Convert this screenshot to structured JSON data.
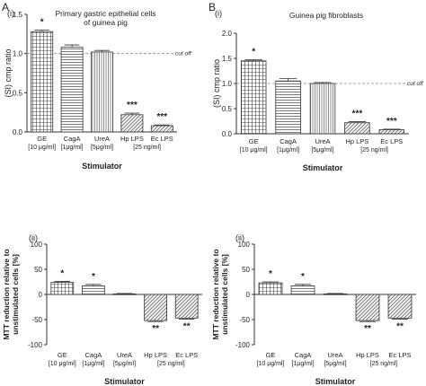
{
  "panel_letters": [
    "A",
    "B"
  ],
  "chart_data": [
    {
      "type": "bar",
      "panel": "A",
      "sub_label": "(i)",
      "title": [
        "Primary gastric epithelial cells",
        "of guinea pig"
      ],
      "xlabel": "Stimulator",
      "ylabel": "(SI) cmp ratio",
      "ylim": [
        0,
        1.5
      ],
      "yticks": [
        "0.0",
        "0.5",
        "1.0",
        "1.5"
      ],
      "categories": [
        [
          "GE",
          "[10 μg/ml]"
        ],
        [
          "CagA",
          "[1μg/ml]"
        ],
        [
          "UreA",
          "[5μg/ml]"
        ],
        [
          "Hp LPS",
          ""
        ],
        [
          "Ec LPS",
          ""
        ]
      ],
      "group_label": "[25 ng/ml]",
      "values": [
        1.28,
        1.08,
        1.02,
        0.22,
        0.08
      ],
      "errors": [
        0.02,
        0.03,
        0.02,
        0.02,
        0.01
      ],
      "significance": [
        "*",
        "",
        "",
        "***",
        "***"
      ],
      "cutoff": {
        "value": 1.0,
        "label": "cut off"
      },
      "patterns": [
        "grid",
        "hlines",
        "vlines",
        "diag",
        "diag"
      ],
      "colors": {
        "bar_fill": "#ffffff",
        "bar_stroke": "#333333",
        "cutoff": "#888888"
      }
    },
    {
      "type": "bar",
      "panel": "B",
      "sub_label": "(i)",
      "title": [
        "Guinea pig fibroblasts"
      ],
      "xlabel": "Stimulator",
      "ylabel": "(SI) cmp ratio",
      "ylim": [
        0,
        2.0
      ],
      "yticks": [
        "0.0",
        "0.5",
        "1.0",
        "1.5",
        "2.0"
      ],
      "categories": [
        [
          "GE",
          "[10 μg/ml]"
        ],
        [
          "CagA",
          "[1μg/ml]"
        ],
        [
          "UreA",
          "[5μg/ml]"
        ],
        [
          "Hp LPS",
          ""
        ],
        [
          "Ec LPS",
          ""
        ]
      ],
      "group_label": "[25 ng/ml]",
      "values": [
        1.45,
        1.05,
        1.0,
        0.22,
        0.08
      ],
      "errors": [
        0.02,
        0.05,
        0.02,
        0.02,
        0.01
      ],
      "significance": [
        "*",
        "",
        "",
        "***",
        "***"
      ],
      "cutoff": {
        "value": 1.0,
        "label": "cut off"
      },
      "patterns": [
        "grid",
        "hlines",
        "vlines",
        "diag",
        "diag"
      ],
      "colors": {
        "bar_fill": "#ffffff",
        "bar_stroke": "#333333",
        "cutoff": "#888888"
      }
    },
    {
      "type": "bar",
      "panel": "A",
      "sub_label": "(ii)",
      "title": [],
      "xlabel": "Stimulator",
      "ylabel": "MTT reduction relative to unstimulated cells [%]",
      "ylim": [
        -100,
        100
      ],
      "yticks": [
        "-100",
        "-50",
        "0",
        "50",
        "100"
      ],
      "categories": [
        [
          "GE",
          "[10 μg/ml]"
        ],
        [
          "CagA",
          "[1μg/ml]"
        ],
        [
          "UreA",
          "[5μg/ml]"
        ],
        [
          "Hp LPS",
          ""
        ],
        [
          "Ec LPS",
          ""
        ]
      ],
      "group_label": "[25 ng/ml]",
      "values": [
        24,
        17,
        1,
        -52,
        -47
      ],
      "errors": [
        2,
        3,
        1,
        2,
        2
      ],
      "significance": [
        "*",
        "*",
        "",
        "**",
        "**"
      ],
      "cutoff": null,
      "patterns": [
        "grid",
        "hlines",
        "vlines",
        "diag",
        "diag"
      ],
      "colors": {
        "bar_fill": "#ffffff",
        "bar_stroke": "#333333",
        "cutoff": "#888888"
      }
    },
    {
      "type": "bar",
      "panel": "B",
      "sub_label": "(ii)",
      "title": [],
      "xlabel": "Stimulator",
      "ylabel": "MTT reduction relative to unstimulated cells [%]",
      "ylim": [
        -100,
        100
      ],
      "yticks": [
        "-100",
        "-50",
        "0",
        "50",
        "100"
      ],
      "categories": [
        [
          "GE",
          "[10 μg/ml]"
        ],
        [
          "CagA",
          "[1μg/ml]"
        ],
        [
          "UreA",
          "[5μg/ml]"
        ],
        [
          "Hp LPS",
          ""
        ],
        [
          "Ec LPS",
          ""
        ]
      ],
      "group_label": "[25 ng/ml]",
      "values": [
        23,
        17,
        1,
        -52,
        -47
      ],
      "errors": [
        2,
        3,
        1,
        2,
        2
      ],
      "significance": [
        "*",
        "*",
        "",
        "**",
        "**"
      ],
      "cutoff": null,
      "patterns": [
        "grid",
        "hlines",
        "vlines",
        "diag",
        "diag"
      ],
      "colors": {
        "bar_fill": "#ffffff",
        "bar_stroke": "#333333",
        "cutoff": "#888888"
      }
    }
  ]
}
